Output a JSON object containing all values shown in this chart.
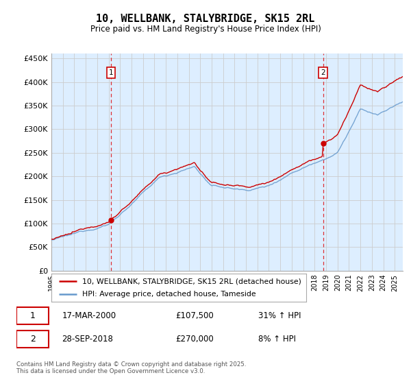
{
  "title": "10, WELLBANK, STALYBRIDGE, SK15 2RL",
  "subtitle": "Price paid vs. HM Land Registry's House Price Index (HPI)",
  "ylabel_ticks": [
    "£0",
    "£50K",
    "£100K",
    "£150K",
    "£200K",
    "£250K",
    "£300K",
    "£350K",
    "£400K",
    "£450K"
  ],
  "ylim": [
    0,
    460000
  ],
  "xlim_start": 1995.0,
  "xlim_end": 2025.7,
  "sale1_date": "17-MAR-2000",
  "sale1_price": 107500,
  "sale1_hpi": "31% ↑ HPI",
  "sale1_x": 2000.21,
  "sale2_date": "28-SEP-2018",
  "sale2_price": 270000,
  "sale2_hpi": "8% ↑ HPI",
  "sale2_x": 2018.74,
  "vline_color": "#dd0000",
  "hpi_line_color": "#6699cc",
  "hpi_fill_color": "#ddeeff",
  "price_line_color": "#cc0000",
  "grid_color": "#cccccc",
  "background_color": "#ffffff",
  "chart_bg_color": "#ddeeff",
  "legend_label1": "10, WELLBANK, STALYBRIDGE, SK15 2RL (detached house)",
  "legend_label2": "HPI: Average price, detached house, Tameside",
  "footnote": "Contains HM Land Registry data © Crown copyright and database right 2025.\nThis data is licensed under the Open Government Licence v3.0.",
  "marker1_y": 420000,
  "marker2_y": 420000
}
